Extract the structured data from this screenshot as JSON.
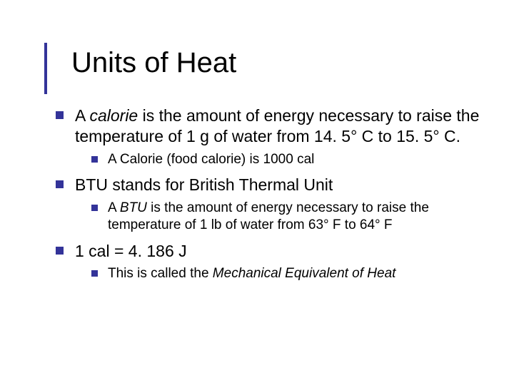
{
  "accent_color": "#333399",
  "background_color": "#ffffff",
  "text_color": "#000000",
  "title": "Units of Heat",
  "title_fontsize": 40,
  "lvl1_fontsize": 23,
  "lvl2_fontsize": 19,
  "items": [
    {
      "pre": "A ",
      "italic": "calorie",
      "post": " is the amount of energy necessary to raise the temperature of 1 g of water from 14. 5° C to 15. 5° C.",
      "sub": [
        {
          "pre": "A Calorie (food calorie) is 1000 cal",
          "italic": "",
          "post": ""
        }
      ]
    },
    {
      "pre": "BTU stands for British Thermal Unit",
      "italic": "",
      "post": "",
      "sub": [
        {
          "pre": "A ",
          "italic": "BTU",
          "post": " is the amount of energy necessary to raise the temperature of 1 lb of water from 63° F to 64° F"
        }
      ]
    },
    {
      "pre": "1 cal = 4. 186 J",
      "italic": "",
      "post": "",
      "sub": [
        {
          "pre": "This is called the ",
          "italic": "Mechanical Equivalent of Heat",
          "post": ""
        }
      ]
    }
  ]
}
